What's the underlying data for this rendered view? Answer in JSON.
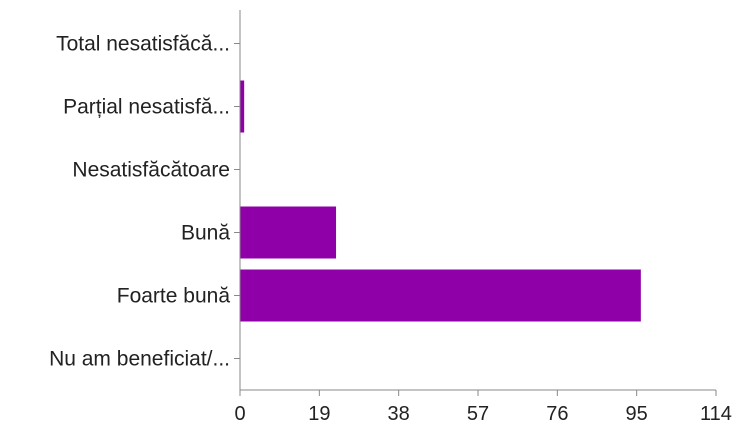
{
  "chart_data": {
    "type": "bar",
    "orientation": "horizontal",
    "categories": [
      "Total nesatisfăcă...",
      "Parțial nesatisfă...",
      "Nesatisfăcătoare",
      "Bună",
      "Foarte bună",
      "Nu am beneficiat/..."
    ],
    "values": [
      0,
      1,
      0,
      23,
      96,
      0
    ],
    "xlim": [
      0,
      114
    ],
    "xticks": [
      "0",
      "19",
      "38",
      "57",
      "76",
      "95",
      "114"
    ],
    "grid": false,
    "legend": "none",
    "bar_color": "#9000a8",
    "axis_color": "#888888"
  }
}
